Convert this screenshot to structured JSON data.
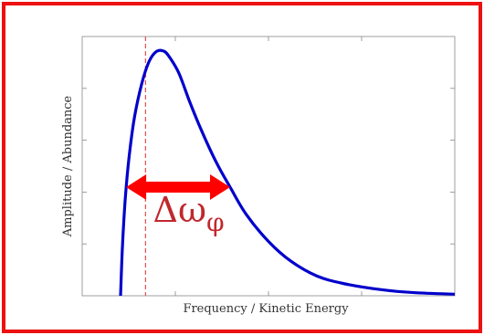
{
  "chart_data": {
    "type": "line",
    "title": "",
    "xlabel": "Frequency / Kinetic Energy",
    "ylabel": "Amplitude / Abundance",
    "xlim": [
      0,
      10
    ],
    "ylim": [
      0,
      1.05
    ],
    "grid": false,
    "series": [
      {
        "color": "#0000cc",
        "x": [
          1.03,
          1.08,
          1.15,
          1.25,
          1.4,
          1.6,
          1.8,
          2.0,
          2.2,
          2.35,
          2.6,
          2.9,
          3.2,
          3.6,
          3.97,
          4.4,
          5.0,
          5.6,
          6.3,
          7.0,
          8.0,
          9.0,
          10.7
        ],
        "y": [
          0.0,
          0.2,
          0.38,
          0.55,
          0.72,
          0.86,
          0.95,
          0.99,
          0.99,
          0.965,
          0.9,
          0.78,
          0.67,
          0.54,
          0.44,
          0.33,
          0.22,
          0.14,
          0.08,
          0.05,
          0.025,
          0.012,
          0.003
        ]
      }
    ],
    "peak_marker": {
      "x": 1.7,
      "color": "#e05050",
      "style": "dashed"
    },
    "annotations": [
      {
        "type": "double-arrow",
        "x_start": 1.18,
        "x_end": 3.97,
        "y": 0.44,
        "color": "#ff0000"
      },
      {
        "type": "text",
        "text": "Δω_φ",
        "x": 1.9,
        "y": 0.3,
        "color": "#c0282d"
      }
    ]
  },
  "frame": {
    "border_color": "#ee1111"
  }
}
